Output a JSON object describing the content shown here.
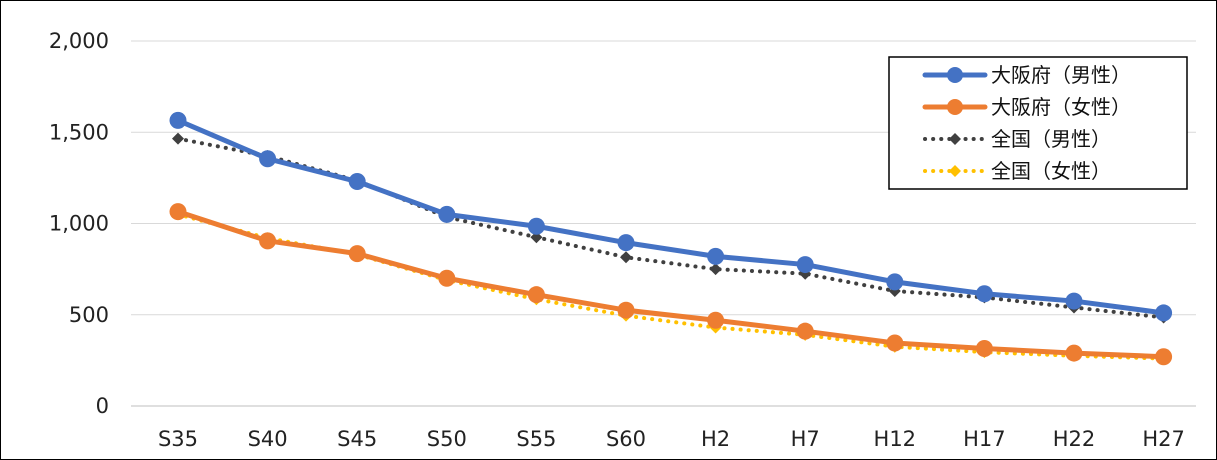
{
  "chart_data": {
    "type": "line",
    "title": "",
    "xlabel": "",
    "ylabel": "",
    "categories": [
      "S35",
      "S40",
      "S45",
      "S50",
      "S55",
      "S60",
      "H2",
      "H7",
      "H12",
      "H17",
      "H22",
      "H27"
    ],
    "ylim": [
      0,
      2000
    ],
    "yticks": [
      0,
      500,
      1000,
      1500,
      2000
    ],
    "ytick_labels": [
      "0",
      "500",
      "1,000",
      "1,500",
      "2,000"
    ],
    "grid": true,
    "legend_position": "top-right",
    "series": [
      {
        "name": "大阪府（男性）",
        "color": "#4472C4",
        "style": "solid-circle",
        "values": [
          1565,
          1355,
          1230,
          1050,
          985,
          895,
          820,
          775,
          680,
          615,
          575,
          510
        ]
      },
      {
        "name": "大阪府（女性）",
        "color": "#ED7D31",
        "style": "solid-circle",
        "values": [
          1065,
          905,
          835,
          700,
          610,
          525,
          470,
          410,
          345,
          315,
          290,
          270
        ]
      },
      {
        "name": "全国（男性）",
        "color": "#404040",
        "style": "dotted-diamond",
        "values": [
          1465,
          1370,
          1235,
          1035,
          925,
          815,
          750,
          725,
          630,
          595,
          540,
          485
        ]
      },
      {
        "name": "全国（女性）",
        "color": "#FFC000",
        "style": "dotted-diamond",
        "values": [
          1050,
          920,
          830,
          690,
          585,
          495,
          430,
          390,
          325,
          295,
          275,
          260
        ]
      }
    ]
  }
}
